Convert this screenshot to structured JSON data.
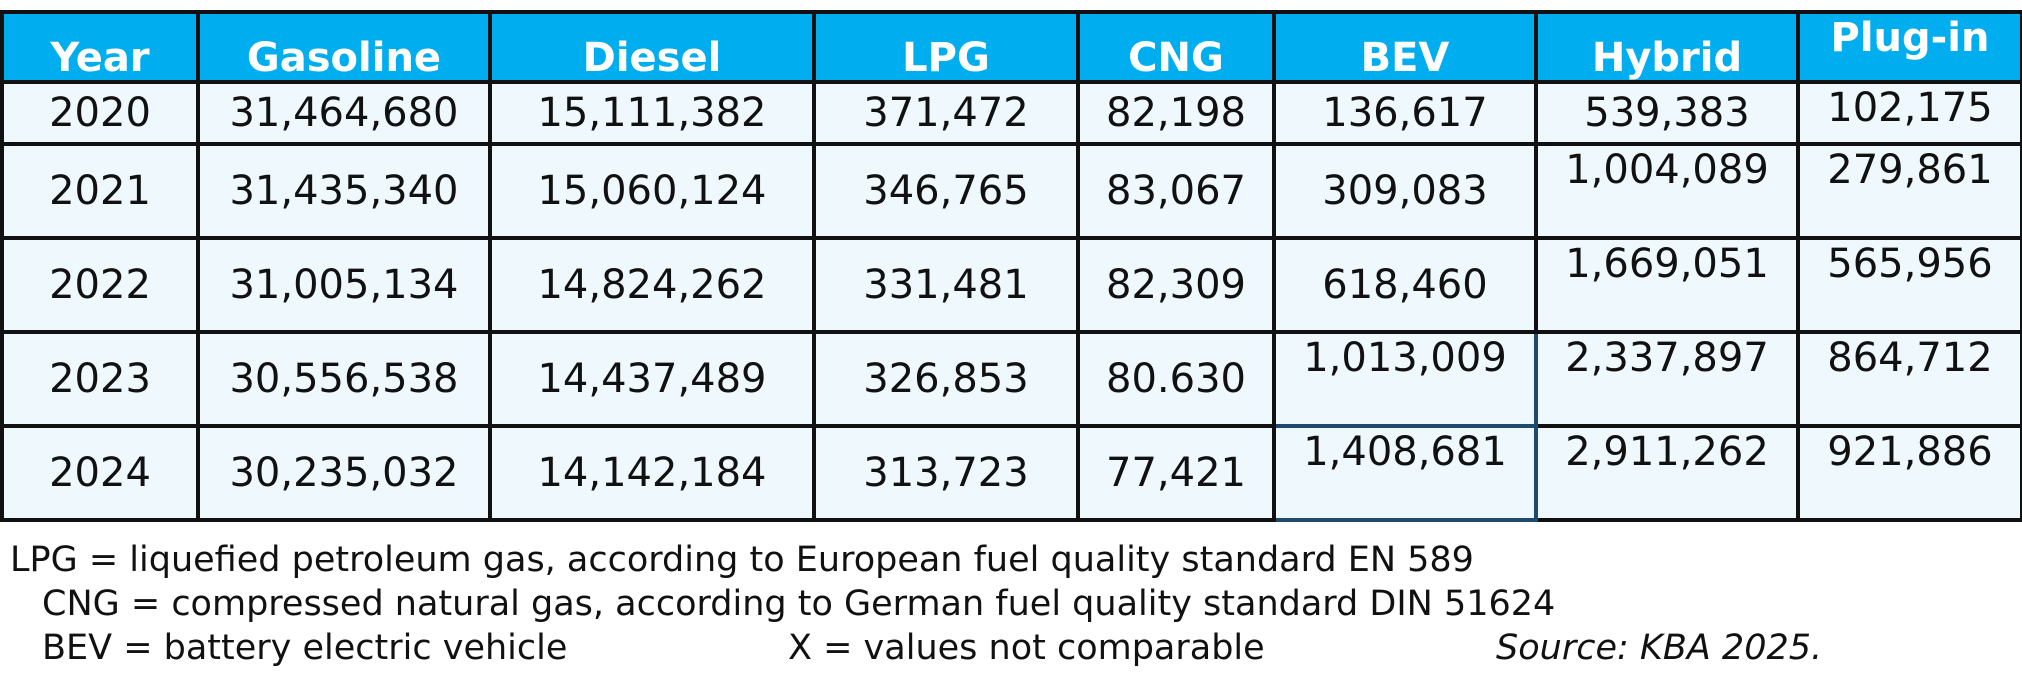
{
  "table": {
    "headers": [
      "Year",
      "Gasoline",
      "Diesel",
      "LPG",
      "CNG",
      "BEV",
      "Hybrid",
      "Plug-in"
    ],
    "rows": [
      [
        "2020",
        "31,464,680",
        "15,111,382",
        "371,472",
        "82,198",
        "136,617",
        "539,383",
        "102,175"
      ],
      [
        "2021",
        "31,435,340",
        "15,060,124",
        "346,765",
        "83,067",
        "309,083",
        "1,004,089",
        "279,861"
      ],
      [
        "2022",
        "31,005,134",
        "14,824,262",
        "331,481",
        "82,309",
        "618,460",
        "1,669,051",
        "565,956"
      ],
      [
        "2023",
        "30,556,538",
        "14,437,489",
        "326,853",
        "80.630",
        "1,013,009",
        "2,337,897",
        "864,712"
      ],
      [
        "2024",
        "30,235,032",
        "14,142,184",
        "313,723",
        "77,421",
        "1,408,681",
        "2,911,262",
        "921,886"
      ]
    ]
  },
  "notes": {
    "lpg": "LPG = liquefied petroleum gas, according to European fuel quality standard EN 589",
    "cng": "CNG = compressed natural gas, according to German fuel quality standard DIN 51624",
    "bev": "BEV = battery electric vehicle",
    "x": "X = values not comparable",
    "source": "Source: KBA 2025."
  },
  "colors": {
    "header_bg": "#00aeef",
    "cell_bg": "#eef8fd",
    "border": "#111111"
  }
}
